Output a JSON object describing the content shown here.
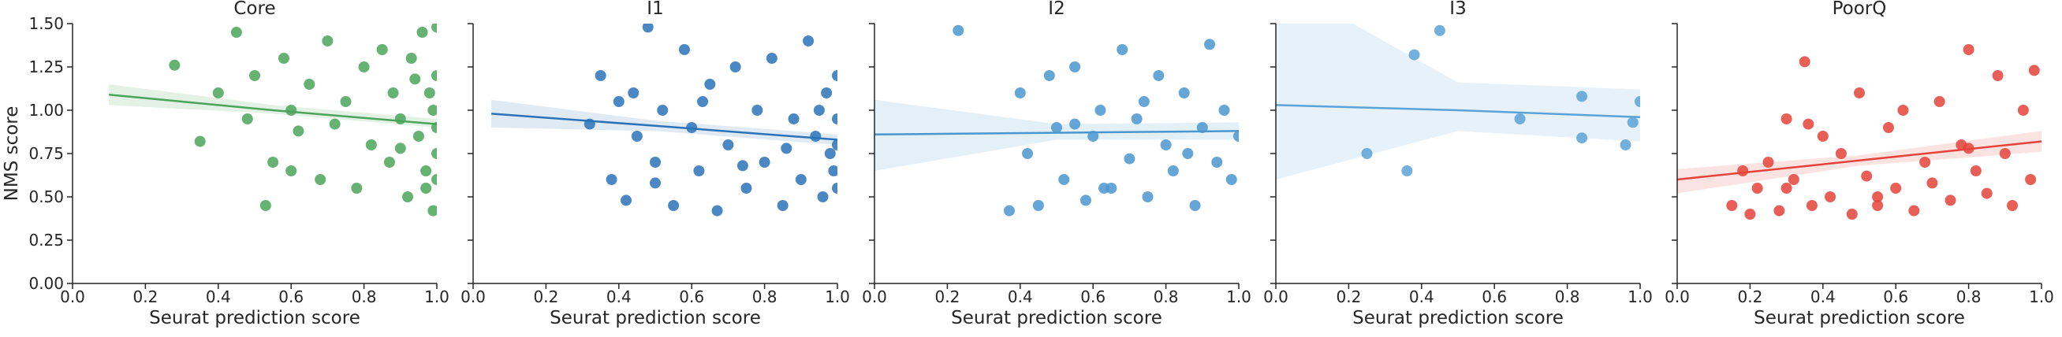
{
  "chart_data": [
    {
      "type": "scatter",
      "title": "Core",
      "x_label": "Seurat prediction score",
      "y_label": "NMS score",
      "color": "#4aa55a",
      "xlim": [
        0,
        1
      ],
      "ylim": [
        0,
        1.5
      ],
      "xticks": [
        {
          "value": 0,
          "label": "0.0"
        },
        0.2,
        0.4,
        0.6,
        0.8,
        {
          "value": 1,
          "label": "1.0"
        }
      ],
      "yticks": [
        {
          "value": 0,
          "label": "0.00"
        },
        0.25,
        {
          "value": 0.5,
          "label": "0.50"
        },
        0.75,
        {
          "value": 1,
          "label": "1.00"
        },
        1.25,
        {
          "value": 1.5,
          "label": "1.50"
        }
      ],
      "x": [
        0.28,
        0.35,
        0.4,
        0.45,
        0.48,
        0.5,
        0.53,
        0.55,
        0.58,
        0.6,
        0.62,
        0.65,
        0.68,
        0.7,
        0.72,
        0.75,
        0.78,
        0.8,
        0.82,
        0.85,
        0.87,
        0.88,
        0.9,
        0.92,
        0.93,
        0.95,
        0.96,
        0.97,
        0.98,
        0.99,
        1.0,
        1.0,
        1.0,
        1.0,
        1.0,
        0.99,
        0.97,
        0.94,
        0.9,
        0.6
      ],
      "y": [
        1.26,
        0.82,
        1.1,
        1.45,
        0.95,
        1.2,
        0.45,
        0.7,
        1.3,
        1.0,
        0.88,
        1.15,
        0.6,
        1.4,
        0.92,
        1.05,
        0.55,
        1.25,
        0.8,
        1.35,
        0.7,
        1.1,
        0.95,
        0.5,
        1.3,
        0.85,
        1.45,
        0.65,
        1.1,
        0.42,
        1.48,
        1.2,
        0.9,
        0.6,
        0.75,
        1.0,
        0.55,
        1.18,
        0.78,
        0.65
      ],
      "fit": {
        "x": [
          0.1,
          0.55,
          1.0
        ],
        "y": [
          1.09,
          1.0,
          0.92
        ],
        "lower": [
          1.03,
          0.98,
          0.9
        ],
        "upper": [
          1.15,
          1.03,
          0.95
        ]
      }
    },
    {
      "type": "scatter",
      "title": "I1",
      "x_label": "Seurat prediction score",
      "color": "#2b73b8",
      "xlim": [
        0,
        1
      ],
      "ylim": [
        0,
        1.5
      ],
      "xticks": [
        {
          "value": 0,
          "label": "0.0"
        },
        0.2,
        0.4,
        0.6,
        0.8,
        {
          "value": 1,
          "label": "1.0"
        }
      ],
      "x": [
        0.32,
        0.35,
        0.38,
        0.4,
        0.42,
        0.45,
        0.48,
        0.5,
        0.52,
        0.55,
        0.58,
        0.6,
        0.62,
        0.65,
        0.67,
        0.7,
        0.72,
        0.75,
        0.78,
        0.8,
        0.82,
        0.85,
        0.88,
        0.9,
        0.92,
        0.94,
        0.96,
        0.97,
        0.98,
        0.99,
        1.0,
        1.0,
        1.0,
        1.0,
        0.95,
        0.86,
        0.74,
        0.63,
        0.5,
        0.44
      ],
      "y": [
        0.92,
        1.2,
        0.6,
        1.05,
        0.48,
        0.85,
        1.48,
        0.7,
        1.0,
        0.45,
        1.35,
        0.9,
        0.65,
        1.15,
        0.42,
        0.8,
        1.25,
        0.55,
        1.0,
        0.7,
        1.3,
        0.45,
        0.95,
        0.6,
        1.4,
        0.85,
        0.5,
        1.1,
        0.75,
        0.65,
        1.2,
        0.95,
        0.8,
        0.55,
        1.0,
        0.78,
        0.68,
        1.05,
        0.58,
        1.1
      ],
      "fit": {
        "x": [
          0.05,
          0.5,
          1.0
        ],
        "y": [
          0.98,
          0.91,
          0.83
        ],
        "lower": [
          0.9,
          0.88,
          0.8
        ],
        "upper": [
          1.06,
          0.94,
          0.86
        ]
      }
    },
    {
      "type": "scatter",
      "title": "I2",
      "x_label": "Seurat prediction score",
      "color": "#4a97cf",
      "xlim": [
        0,
        1
      ],
      "ylim": [
        0,
        1.5
      ],
      "xticks": [
        {
          "value": 0,
          "label": "0.0"
        },
        0.2,
        0.4,
        0.6,
        0.8,
        {
          "value": 1,
          "label": "1.0"
        }
      ],
      "x": [
        0.23,
        0.37,
        0.4,
        0.42,
        0.45,
        0.48,
        0.5,
        0.52,
        0.55,
        0.58,
        0.6,
        0.62,
        0.65,
        0.68,
        0.7,
        0.72,
        0.75,
        0.78,
        0.8,
        0.82,
        0.85,
        0.88,
        0.9,
        0.92,
        0.94,
        0.96,
        0.98,
        1.0,
        0.86,
        0.74,
        0.63,
        0.55
      ],
      "y": [
        1.46,
        0.42,
        1.1,
        0.75,
        0.45,
        1.2,
        0.9,
        0.6,
        1.25,
        0.48,
        0.85,
        1.0,
        0.55,
        1.35,
        0.72,
        0.95,
        0.5,
        1.2,
        0.8,
        0.65,
        1.1,
        0.45,
        0.9,
        1.38,
        0.7,
        1.0,
        0.6,
        0.85,
        0.75,
        1.05,
        0.55,
        0.92
      ],
      "fit": {
        "x": [
          0,
          0.5,
          1.0
        ],
        "y": [
          0.86,
          0.87,
          0.88
        ],
        "lower": [
          0.65,
          0.83,
          0.83
        ],
        "upper": [
          1.06,
          0.92,
          0.93
        ]
      }
    },
    {
      "type": "scatter",
      "title": "I3",
      "x_label": "Seurat prediction score",
      "color": "#5aa3d6",
      "xlim": [
        0,
        1
      ],
      "ylim": [
        0,
        1.5
      ],
      "xticks": [
        {
          "value": 0,
          "label": "0.0"
        },
        0.2,
        0.4,
        0.6,
        0.8,
        {
          "value": 1,
          "label": "1.0"
        }
      ],
      "x": [
        0.25,
        0.36,
        0.38,
        0.45,
        0.67,
        0.84,
        0.84,
        0.96,
        0.98,
        1.0
      ],
      "y": [
        0.75,
        0.65,
        1.32,
        1.46,
        0.95,
        1.08,
        0.84,
        0.8,
        0.93,
        1.05
      ],
      "fit": {
        "x": [
          0,
          0.5,
          1.0
        ],
        "y": [
          1.03,
          1.0,
          0.96
        ],
        "lower": [
          0.6,
          0.88,
          0.82
        ],
        "upper": [
          1.75,
          1.16,
          1.12
        ]
      }
    },
    {
      "type": "scatter",
      "title": "PoorQ",
      "x_label": "Seurat prediction score",
      "color": "#e4433a",
      "xlim": [
        0,
        1
      ],
      "ylim": [
        0,
        1.5
      ],
      "xticks": [
        {
          "value": 0,
          "label": "0.0"
        },
        0.2,
        0.4,
        0.6,
        0.8,
        {
          "value": 1,
          "label": "1.0"
        }
      ],
      "x": [
        0.15,
        0.18,
        0.2,
        0.22,
        0.25,
        0.28,
        0.3,
        0.32,
        0.35,
        0.37,
        0.4,
        0.42,
        0.45,
        0.48,
        0.5,
        0.52,
        0.55,
        0.58,
        0.6,
        0.62,
        0.65,
        0.68,
        0.7,
        0.72,
        0.75,
        0.78,
        0.8,
        0.82,
        0.85,
        0.88,
        0.9,
        0.92,
        0.95,
        0.97,
        0.98,
        0.36,
        0.3,
        0.55,
        0.8
      ],
      "y": [
        0.45,
        0.65,
        0.4,
        0.55,
        0.7,
        0.42,
        0.95,
        0.6,
        1.28,
        0.45,
        0.85,
        0.5,
        0.75,
        0.4,
        1.1,
        0.62,
        0.45,
        0.9,
        0.55,
        1.0,
        0.42,
        0.7,
        0.58,
        1.05,
        0.48,
        0.8,
        1.35,
        0.65,
        0.52,
        1.2,
        0.75,
        0.45,
        1.0,
        0.6,
        1.23,
        0.92,
        0.55,
        0.5,
        0.78
      ],
      "fit": {
        "x": [
          0,
          0.5,
          1.0
        ],
        "y": [
          0.6,
          0.71,
          0.82
        ],
        "lower": [
          0.52,
          0.68,
          0.76
        ],
        "upper": [
          0.66,
          0.74,
          0.88
        ]
      }
    }
  ]
}
